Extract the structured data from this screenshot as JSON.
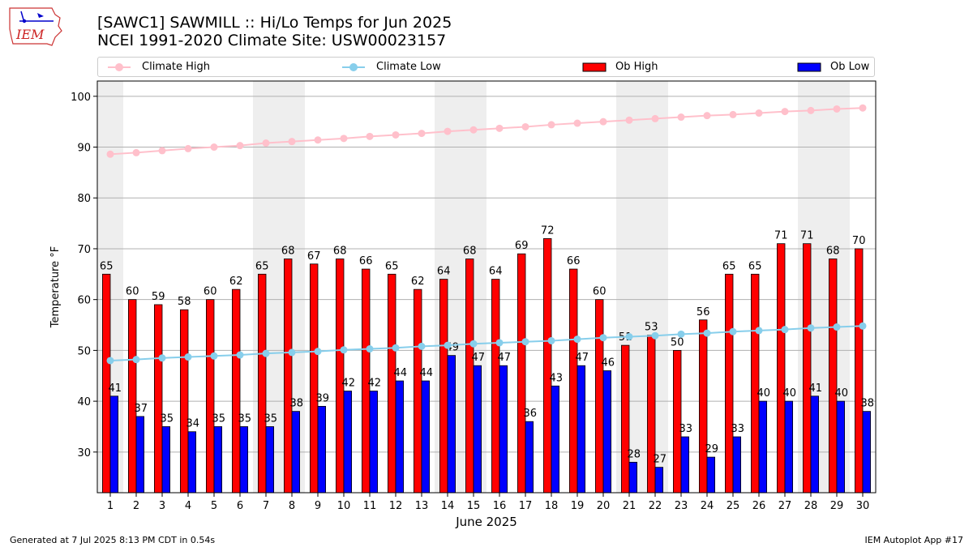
{
  "logo": {
    "text": "IEM"
  },
  "title": {
    "line1": "[SAWC1] SAWMILL :: Hi/Lo Temps for Jun 2025",
    "line2": "NCEI 1991-2020 Climate Site: USW00023157"
  },
  "legend": {
    "climate_high": "Climate High",
    "climate_low": "Climate Low",
    "ob_high": "Ob High",
    "ob_low": "Ob Low"
  },
  "footer": {
    "left": "Generated at 7 Jul 2025 8:13 PM CDT in 0.54s",
    "right": "IEM Autoplot App #17"
  },
  "colors": {
    "ob_high": "#ff0000",
    "ob_low": "#0000ff",
    "climate_high": "#ffc0cb",
    "climate_low": "#87ceeb",
    "weekend_shade": "#eeeeee"
  },
  "chart_data": {
    "type": "bar",
    "xlabel": "June 2025",
    "ylabel": "Temperature °F",
    "ylim": [
      22,
      103
    ],
    "yticks": [
      30,
      40,
      50,
      60,
      70,
      80,
      90,
      100
    ],
    "grid": "horizontal",
    "legend_position": "top",
    "days": [
      1,
      2,
      3,
      4,
      5,
      6,
      7,
      8,
      9,
      10,
      11,
      12,
      13,
      14,
      15,
      16,
      17,
      18,
      19,
      20,
      21,
      22,
      23,
      24,
      25,
      26,
      27,
      28,
      29,
      30
    ],
    "shaded_days": [
      1,
      7,
      8,
      14,
      15,
      21,
      22,
      28,
      29
    ],
    "series": [
      {
        "name": "Ob High",
        "kind": "bar",
        "values": [
          65,
          60,
          59,
          58,
          60,
          62,
          65,
          68,
          67,
          68,
          66,
          65,
          62,
          64,
          68,
          64,
          69,
          72,
          66,
          60,
          51,
          53,
          50,
          56,
          65,
          65,
          71,
          71,
          68,
          70
        ]
      },
      {
        "name": "Ob Low",
        "kind": "bar",
        "values": [
          41,
          37,
          35,
          34,
          35,
          35,
          35,
          38,
          39,
          42,
          42,
          44,
          44,
          49,
          47,
          47,
          36,
          43,
          47,
          46,
          28,
          27,
          33,
          29,
          33,
          40,
          40,
          41,
          40,
          38
        ]
      },
      {
        "name": "Climate High",
        "kind": "line",
        "values": [
          88.6,
          88.9,
          89.3,
          89.7,
          90.0,
          90.3,
          90.8,
          91.1,
          91.4,
          91.7,
          92.1,
          92.4,
          92.7,
          93.1,
          93.4,
          93.7,
          94.0,
          94.4,
          94.7,
          95.0,
          95.3,
          95.6,
          95.9,
          96.2,
          96.4,
          96.7,
          97.0,
          97.2,
          97.5,
          97.7
        ]
      },
      {
        "name": "Climate Low",
        "kind": "line",
        "values": [
          48.0,
          48.2,
          48.5,
          48.7,
          48.9,
          49.1,
          49.4,
          49.6,
          49.8,
          50.1,
          50.3,
          50.5,
          50.8,
          51.0,
          51.3,
          51.5,
          51.7,
          51.9,
          52.2,
          52.5,
          52.7,
          52.9,
          53.2,
          53.4,
          53.7,
          53.9,
          54.1,
          54.4,
          54.6,
          54.8
        ]
      }
    ]
  }
}
